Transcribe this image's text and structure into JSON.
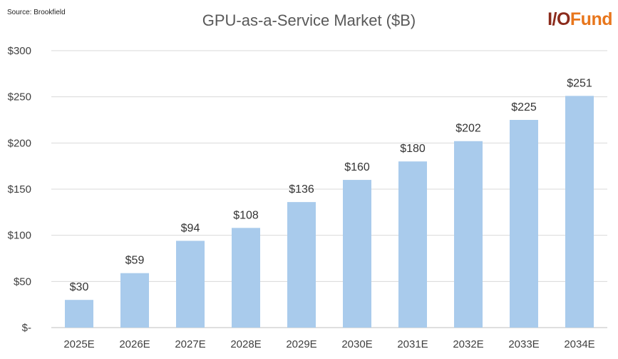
{
  "source_note": "Source: Brookfield",
  "logo": {
    "part1": "I/O",
    "part2": "Fund"
  },
  "colors": {
    "bar": "#a9cbec",
    "grid": "#d9d9d9",
    "logo_dark": "#8b2b1c",
    "logo_orange": "#e8761c"
  },
  "chart_data": {
    "type": "bar",
    "title": "GPU-as-a-Service Market ($B)",
    "xlabel": "",
    "ylabel": "",
    "categories": [
      "2025E",
      "2026E",
      "2027E",
      "2028E",
      "2029E",
      "2030E",
      "2031E",
      "2032E",
      "2033E",
      "2034E"
    ],
    "values": [
      30,
      59,
      94,
      108,
      136,
      160,
      180,
      202,
      225,
      251
    ],
    "data_labels": [
      "$30",
      "$59",
      "$94",
      "$108",
      "$136",
      "$160",
      "$180",
      "$202",
      "$225",
      "$251"
    ],
    "ylim": [
      0,
      300
    ],
    "yticks": [
      0,
      50,
      100,
      150,
      200,
      250,
      300
    ],
    "ytick_labels": [
      "$-",
      "$50",
      "$100",
      "$150",
      "$200",
      "$250",
      "$300"
    ],
    "grid": true
  }
}
